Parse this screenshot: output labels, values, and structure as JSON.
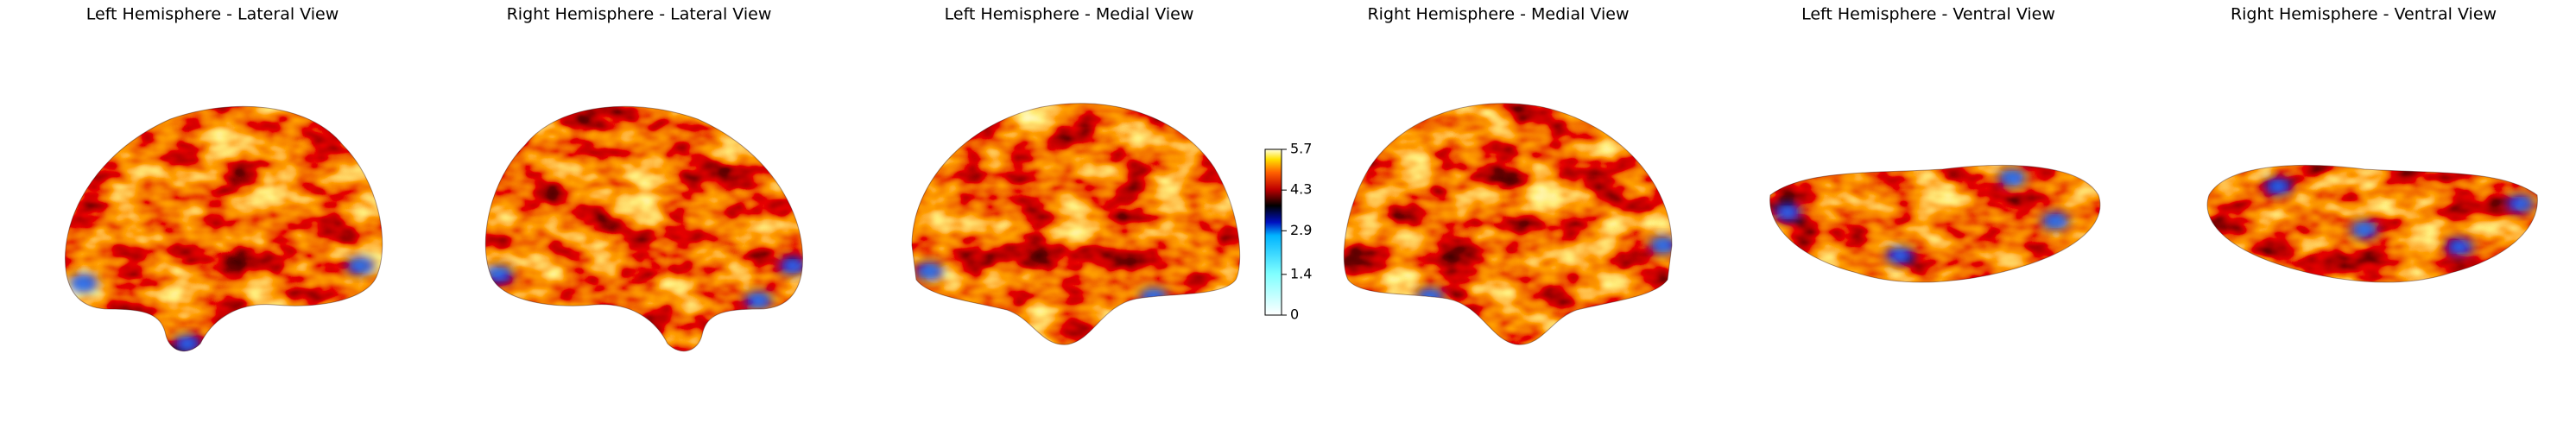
{
  "panels": [
    {
      "title": "Left Hemisphere - Lateral View"
    },
    {
      "title": "Right Hemisphere - Lateral View"
    },
    {
      "title": "Left Hemisphere - Medial View"
    },
    {
      "title": "Right Hemisphere - Medial View"
    },
    {
      "title": "Left Hemisphere - Ventral View"
    },
    {
      "title": "Right Hemisphere - Ventral View"
    }
  ],
  "colorbar": {
    "ylim": [
      0,
      5.7
    ],
    "yticks": [
      0,
      1.4,
      2.9,
      4.3,
      5.7
    ]
  }
}
